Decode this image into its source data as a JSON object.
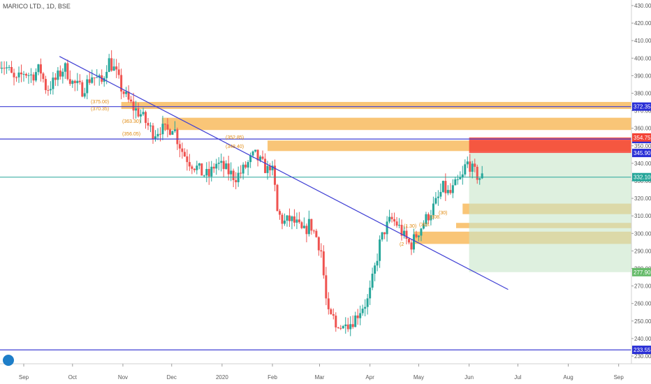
{
  "header": {
    "symbol_title": "MARICO LTD., 1D, BSE"
  },
  "colors": {
    "up": "#26a69a",
    "down": "#ef5350",
    "trendline": "#3f3fd4",
    "zone_orange": "#f7b24a",
    "zone_red": "#f44336",
    "zone_green": "#c8e6c9",
    "price_line": "#26a69a",
    "label_blue": "#2a2fd6",
    "label_red": "#f44336",
    "label_teal": "#26a69a",
    "label_green": "#66bb6a"
  },
  "chart_data": {
    "type": "candlestick",
    "title": "MARICO LTD., 1D, BSE",
    "xlabel": "",
    "ylabel": "",
    "ylim": [
      226,
      433
    ],
    "grid": false,
    "y_ticks": [
      "230.00",
      "240.00",
      "250.00",
      "260.00",
      "270.00",
      "280.00",
      "290.00",
      "300.00",
      "310.00",
      "320.00",
      "330.00",
      "340.00",
      "350.00",
      "360.00",
      "370.00",
      "380.00",
      "390.00",
      "400.00",
      "410.00",
      "420.00",
      "430.00"
    ],
    "x_ticks": [
      {
        "label": "Sep",
        "day": 0
      },
      {
        "label": "Oct",
        "day": 30
      },
      {
        "label": "Nov",
        "day": 61
      },
      {
        "label": "Dec",
        "day": 91
      },
      {
        "label": "2020",
        "day": 122
      },
      {
        "label": "Feb",
        "day": 153
      },
      {
        "label": "Mar",
        "day": 182
      },
      {
        "label": "Apr",
        "day": 213
      },
      {
        "label": "May",
        "day": 243
      },
      {
        "label": "Jun",
        "day": 274
      },
      {
        "label": "Jul",
        "day": 304
      },
      {
        "label": "Aug",
        "day": 335
      },
      {
        "label": "Sep",
        "day": 366
      }
    ],
    "x_range_days": [
      -15,
      381
    ],
    "price_path": [
      [
        -15,
        398
      ],
      [
        -10,
        394
      ],
      [
        -5,
        386
      ],
      [
        0,
        392
      ],
      [
        5,
        390
      ],
      [
        10,
        394
      ],
      [
        14,
        382
      ],
      [
        20,
        388
      ],
      [
        25,
        395
      ],
      [
        30,
        386
      ],
      [
        36,
        382
      ],
      [
        42,
        390
      ],
      [
        48,
        386
      ],
      [
        52,
        399
      ],
      [
        56,
        393
      ],
      [
        60,
        383
      ],
      [
        64,
        376
      ],
      [
        68,
        371
      ],
      [
        72,
        368
      ],
      [
        76,
        362
      ],
      [
        80,
        357
      ],
      [
        84,
        360
      ],
      [
        88,
        358
      ],
      [
        92,
        362
      ],
      [
        94,
        355
      ],
      [
        98,
        346
      ],
      [
        102,
        341
      ],
      [
        106,
        338
      ],
      [
        110,
        334
      ],
      [
        114,
        333
      ],
      [
        118,
        340
      ],
      [
        122,
        338
      ],
      [
        126,
        335
      ],
      [
        130,
        332
      ],
      [
        134,
        335
      ],
      [
        138,
        340
      ],
      [
        142,
        345
      ],
      [
        146,
        340
      ],
      [
        150,
        336
      ],
      [
        152,
        340
      ],
      [
        154,
        330
      ],
      [
        156,
        312
      ],
      [
        160,
        306
      ],
      [
        164,
        308
      ],
      [
        168,
        305
      ],
      [
        172,
        300
      ],
      [
        176,
        306
      ],
      [
        180,
        298
      ],
      [
        183,
        290
      ],
      [
        186,
        262
      ],
      [
        188,
        250
      ],
      [
        190,
        253
      ],
      [
        192,
        246
      ],
      [
        194,
        250
      ],
      [
        196,
        244
      ],
      [
        198,
        252
      ],
      [
        200,
        248
      ],
      [
        204,
        252
      ],
      [
        208,
        258
      ],
      [
        212,
        262
      ],
      [
        216,
        280
      ],
      [
        219,
        294
      ],
      [
        222,
        302
      ],
      [
        226,
        308
      ],
      [
        230,
        305
      ],
      [
        234,
        298
      ],
      [
        238,
        293
      ],
      [
        242,
        300
      ],
      [
        246,
        306
      ],
      [
        250,
        312
      ],
      [
        254,
        318
      ],
      [
        258,
        326
      ],
      [
        262,
        322
      ],
      [
        266,
        328
      ],
      [
        270,
        332
      ],
      [
        272,
        340
      ],
      [
        274,
        340
      ],
      [
        276,
        336
      ],
      [
        280,
        332
      ],
      [
        283,
        332
      ]
    ],
    "annotations": {
      "horizontal_lines": [
        {
          "price": 372.35,
          "label": "372.35"
        },
        {
          "price": 353.85,
          "label": "353.85"
        },
        {
          "price": 233.55,
          "label": "233.55"
        }
      ],
      "trendline": {
        "from": {
          "day": 22,
          "price": 401
        },
        "to": {
          "day": 298,
          "price": 268
        }
      },
      "orange_zones": [
        [
          371,
          375
        ],
        [
          359,
          366
        ],
        [
          347,
          353
        ],
        [
          311,
          317
        ],
        [
          303,
          306
        ],
        [
          294,
          301
        ]
      ],
      "red_zone": [
        345.9,
        354.75
      ],
      "green_zone": [
        277.9,
        345.9
      ],
      "last_price": {
        "price": 332.1,
        "label": "332.10"
      },
      "price_labels": [
        {
          "price": 354.75,
          "label": "354.75",
          "style": "red"
        },
        {
          "price": 345.9,
          "label": "345.90",
          "style": "blue"
        },
        {
          "price": 277.9,
          "label": "277.90",
          "style": "green"
        }
      ],
      "level_notes": [
        "(375.00)",
        "(370.35)",
        "(363.30)",
        "(356.05)",
        "(352.85)",
        "(348.40)",
        "(308.",
        "(303.",
        "(2",
        "(1.30)",
        "(30)"
      ]
    }
  }
}
